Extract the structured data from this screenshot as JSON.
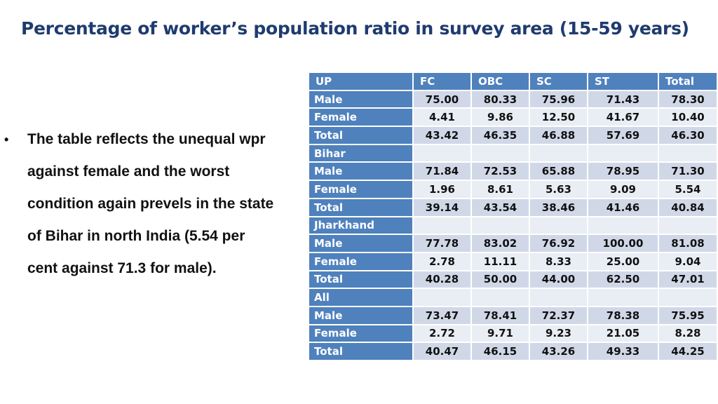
{
  "title": "Percentage of worker’s population ratio in survey area (15-59 years)",
  "bullet": {
    "marker": "•",
    "lines": [
      "The table reflects the unequal wpr",
      "against female and the worst",
      "condition again prevels in the state",
      "of Bihar in north India (5.54 per",
      "cent against 71.3 for male)."
    ]
  },
  "table": {
    "headers": [
      "UP",
      "FC",
      "OBC",
      "SC",
      "ST",
      "Total"
    ],
    "rows": [
      {
        "label": "Male",
        "values": [
          "75.00",
          "80.33",
          "75.96",
          "71.43",
          "78.30"
        ]
      },
      {
        "label": "Female",
        "values": [
          "4.41",
          "9.86",
          "12.50",
          "41.67",
          "10.40"
        ]
      },
      {
        "label": "Total",
        "values": [
          "43.42",
          "46.35",
          "46.88",
          "57.69",
          "46.30"
        ]
      },
      {
        "label": "Bihar",
        "values": [
          "",
          "",
          "",
          "",
          ""
        ]
      },
      {
        "label": "Male",
        "values": [
          "71.84",
          "72.53",
          "65.88",
          "78.95",
          "71.30"
        ]
      },
      {
        "label": "Female",
        "values": [
          "1.96",
          "8.61",
          "5.63",
          "9.09",
          "5.54"
        ]
      },
      {
        "label": "Total",
        "values": [
          "39.14",
          "43.54",
          "38.46",
          "41.46",
          "40.84"
        ]
      },
      {
        "label": "Jharkhand",
        "values": [
          "",
          "",
          "",
          "",
          ""
        ]
      },
      {
        "label": "Male",
        "values": [
          "77.78",
          "83.02",
          "76.92",
          "100.00",
          "81.08"
        ]
      },
      {
        "label": "Female",
        "values": [
          "2.78",
          "11.11",
          "8.33",
          "25.00",
          "9.04"
        ]
      },
      {
        "label": "Total",
        "values": [
          "40.28",
          "50.00",
          "44.00",
          "62.50",
          "47.01"
        ]
      },
      {
        "label": "All",
        "values": [
          "",
          "",
          "",
          "",
          ""
        ]
      },
      {
        "label": "Male",
        "values": [
          "73.47",
          "78.41",
          "72.37",
          "78.38",
          "75.95"
        ]
      },
      {
        "label": "Female",
        "values": [
          "2.72",
          "9.71",
          "9.23",
          "21.05",
          "8.28"
        ]
      },
      {
        "label": "Total",
        "values": [
          "40.47",
          "46.15",
          "43.26",
          "49.33",
          "44.25"
        ]
      }
    ]
  },
  "colors": {
    "title": "#1f3b6e",
    "header_bg": "#4f81bd",
    "row_odd": "#d0d8e8",
    "row_even": "#e9edf4"
  }
}
